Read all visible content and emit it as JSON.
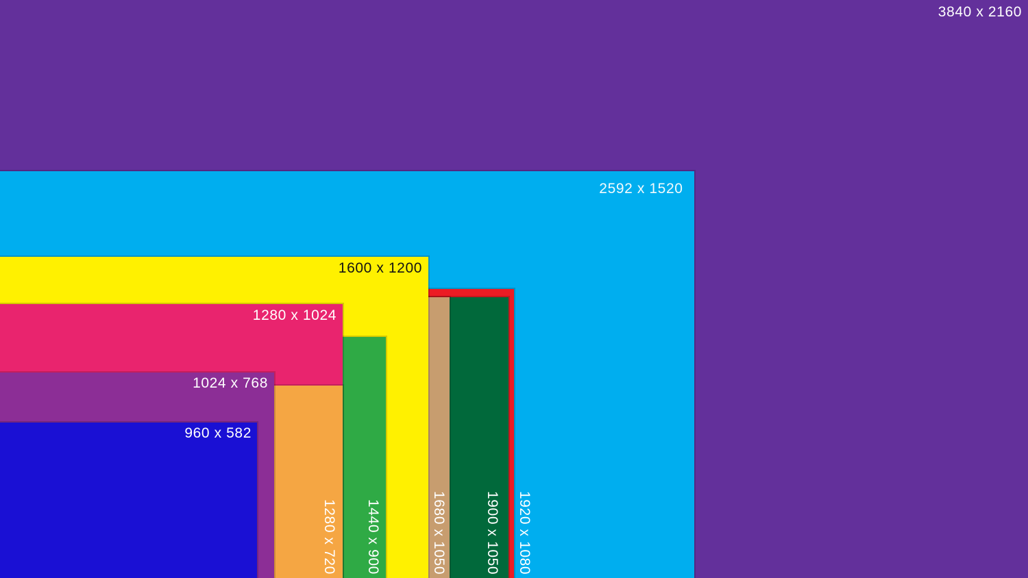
{
  "diagram": {
    "rectangles": [
      {
        "label": "3840 x 2160",
        "res_w": 3840,
        "res_h": 2160,
        "color": "#63309B",
        "label_color": "#FFFFFF",
        "label_orientation": "horizontal"
      },
      {
        "label": "2592 x 1520",
        "res_w": 2592,
        "res_h": 1520,
        "color": "#00AEEF",
        "label_color": "#F2FAFC",
        "label_orientation": "horizontal"
      },
      {
        "label": "1920 x 1080",
        "res_w": 1920,
        "res_h": 1080,
        "color": "#EC1C24",
        "label_color": "#FFFFFF",
        "label_orientation": "vertical"
      },
      {
        "label": "1900 x 1050",
        "res_w": 1900,
        "res_h": 1050,
        "color": "#01693B",
        "label_color": "#FFFFFF",
        "label_orientation": "vertical"
      },
      {
        "label": "1680 x 1050",
        "res_w": 1680,
        "res_h": 1050,
        "color": "#C79D6F",
        "label_color": "#FFFFFF",
        "label_orientation": "vertical"
      },
      {
        "label": "1600 x 1200",
        "res_w": 1600,
        "res_h": 1200,
        "color": "#FFF100",
        "label_color": "#141414",
        "label_orientation": "horizontal"
      },
      {
        "label": "1440 x 900",
        "res_w": 1440,
        "res_h": 900,
        "color": "#2FAA45",
        "label_color": "#FFFFFF",
        "label_orientation": "vertical"
      },
      {
        "label": "1280 x 1024",
        "res_w": 1280,
        "res_h": 1024,
        "color": "#E9246E",
        "label_color": "#FFFFFF",
        "label_orientation": "horizontal"
      },
      {
        "label": "1280 x 720",
        "res_w": 1280,
        "res_h": 720,
        "color": "#F5A643",
        "label_color": "#FFFFFF",
        "label_orientation": "vertical"
      },
      {
        "label": "1024 x 768",
        "res_w": 1024,
        "res_h": 768,
        "color": "#8C2E96",
        "label_color": "#FFFFFF",
        "label_orientation": "horizontal"
      },
      {
        "label": "960 x 582",
        "res_w": 960,
        "res_h": 582,
        "color": "#1A10D4",
        "label_color": "#FFFFFF",
        "label_orientation": "horizontal"
      }
    ]
  }
}
